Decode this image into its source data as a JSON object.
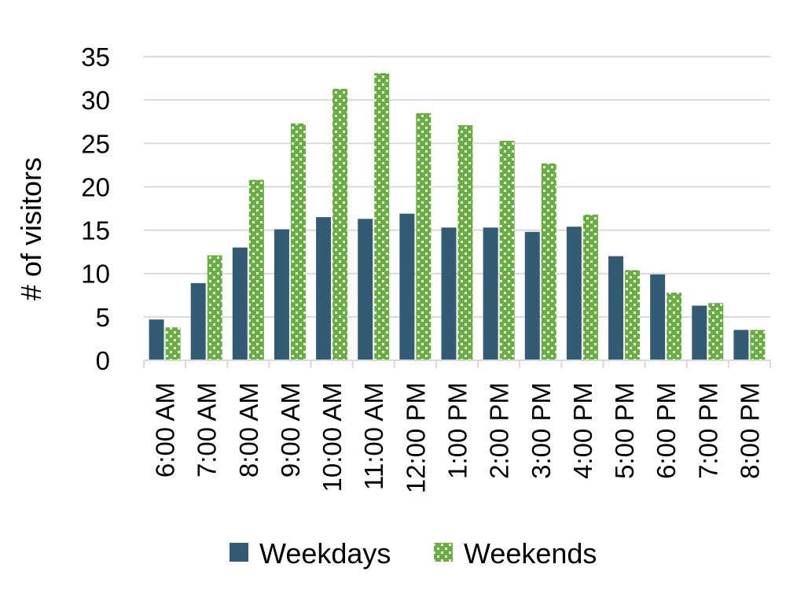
{
  "chart_data": {
    "type": "bar",
    "title": "",
    "xlabel": "",
    "ylabel": "# of visitors",
    "ylim": [
      0,
      35
    ],
    "yticks": [
      0,
      5,
      10,
      15,
      20,
      25,
      30,
      35
    ],
    "grid": true,
    "legend_position": "bottom",
    "categories": [
      "6:00 AM",
      "7:00 AM",
      "8:00 AM",
      "9:00 AM",
      "10:00 AM",
      "11:00 AM",
      "12:00 PM",
      "1:00 PM",
      "2:00 PM",
      "3:00 PM",
      "4:00 PM",
      "5:00 PM",
      "6:00 PM",
      "7:00 PM",
      "8:00 PM"
    ],
    "series": [
      {
        "name": "Weekdays",
        "color": "#335b74",
        "pattern": "solid",
        "values": [
          4.7,
          8.9,
          13.0,
          15.1,
          16.5,
          16.3,
          16.9,
          15.3,
          15.3,
          14.8,
          15.4,
          12.0,
          9.9,
          6.3,
          3.5
        ]
      },
      {
        "name": "Weekends",
        "color": "#6aae43",
        "pattern": "checkered",
        "values": [
          3.8,
          12.1,
          20.8,
          27.3,
          31.3,
          33.1,
          28.5,
          27.1,
          25.3,
          22.7,
          16.8,
          10.4,
          7.8,
          6.6,
          3.5
        ]
      }
    ]
  }
}
